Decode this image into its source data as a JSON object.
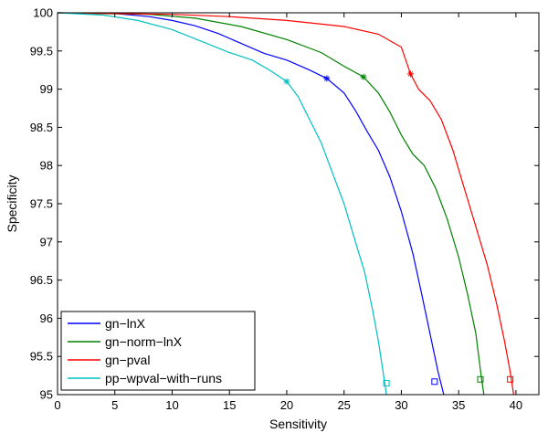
{
  "chart_data": {
    "type": "line",
    "title": "",
    "xlabel": "Sensitivity",
    "ylabel": "Specificity",
    "xlim": [
      0,
      42
    ],
    "ylim": [
      95,
      100
    ],
    "xticks": [
      0,
      5,
      10,
      15,
      20,
      25,
      30,
      35,
      40
    ],
    "yticks": [
      95,
      95.5,
      96,
      96.5,
      97,
      97.5,
      98,
      98.5,
      99,
      99.5,
      100
    ],
    "xtick_labels": [
      "0",
      "5",
      "10",
      "15",
      "20",
      "25",
      "30",
      "35",
      "40"
    ],
    "ytick_labels": [
      "95",
      "95.5",
      "96",
      "96.5",
      "97",
      "97.5",
      "98",
      "98.5",
      "99",
      "99.5",
      "100"
    ],
    "grid": false,
    "legend_position": "bottom-left",
    "series": [
      {
        "name": "gn−lnX",
        "color": "#0000ff",
        "points": [
          [
            0,
            100
          ],
          [
            5,
            99.99
          ],
          [
            8,
            99.95
          ],
          [
            10,
            99.9
          ],
          [
            12,
            99.83
          ],
          [
            14,
            99.73
          ],
          [
            16,
            99.6
          ],
          [
            18,
            99.47
          ],
          [
            20,
            99.38
          ],
          [
            22,
            99.25
          ],
          [
            23.5,
            99.14
          ],
          [
            25,
            98.95
          ],
          [
            26,
            98.72
          ],
          [
            27,
            98.45
          ],
          [
            28,
            98.2
          ],
          [
            29,
            97.85
          ],
          [
            30,
            97.4
          ],
          [
            31,
            96.85
          ],
          [
            31.8,
            96.3
          ],
          [
            32.5,
            95.8
          ],
          [
            33.2,
            95.3
          ],
          [
            33.7,
            95
          ]
        ],
        "asterisk": [
          23.5,
          99.14
        ],
        "square": [
          32.9,
          95.17
        ]
      },
      {
        "name": "gn−norm−lnX",
        "color": "#008000",
        "points": [
          [
            0,
            100
          ],
          [
            8,
            99.98
          ],
          [
            12,
            99.93
          ],
          [
            16,
            99.82
          ],
          [
            20,
            99.65
          ],
          [
            23,
            99.48
          ],
          [
            25,
            99.3
          ],
          [
            26.7,
            99.16
          ],
          [
            28,
            98.95
          ],
          [
            29,
            98.7
          ],
          [
            30,
            98.4
          ],
          [
            31,
            98.15
          ],
          [
            32,
            98
          ],
          [
            33,
            97.7
          ],
          [
            34,
            97.3
          ],
          [
            35,
            96.8
          ],
          [
            35.8,
            96.3
          ],
          [
            36.5,
            95.8
          ],
          [
            37,
            95.2
          ],
          [
            37.2,
            95
          ]
        ],
        "asterisk": [
          26.7,
          99.16
        ],
        "square": [
          36.9,
          95.2
        ]
      },
      {
        "name": "gn−pval",
        "color": "#ff0000",
        "points": [
          [
            0,
            100
          ],
          [
            10,
            99.98
          ],
          [
            15,
            99.95
          ],
          [
            20,
            99.9
          ],
          [
            25,
            99.82
          ],
          [
            28,
            99.72
          ],
          [
            30,
            99.55
          ],
          [
            30.8,
            99.2
          ],
          [
            31.5,
            99
          ],
          [
            32.5,
            98.85
          ],
          [
            33.5,
            98.6
          ],
          [
            34.5,
            98.2
          ],
          [
            35.5,
            97.7
          ],
          [
            36.5,
            97.2
          ],
          [
            37.5,
            96.7
          ],
          [
            38.3,
            96.2
          ],
          [
            39,
            95.7
          ],
          [
            39.5,
            95.3
          ],
          [
            39.8,
            95
          ]
        ],
        "asterisk": [
          30.8,
          99.2
        ],
        "square": [
          39.5,
          95.2
        ]
      },
      {
        "name": "pp−wpval−with−runs",
        "color": "#00c0c0",
        "points": [
          [
            0,
            100
          ],
          [
            4,
            99.97
          ],
          [
            7,
            99.9
          ],
          [
            10,
            99.78
          ],
          [
            13,
            99.6
          ],
          [
            15,
            99.48
          ],
          [
            17,
            99.38
          ],
          [
            18.5,
            99.25
          ],
          [
            20,
            99.1
          ],
          [
            21,
            98.9
          ],
          [
            22,
            98.6
          ],
          [
            23,
            98.3
          ],
          [
            24,
            97.9
          ],
          [
            25,
            97.5
          ],
          [
            26,
            97
          ],
          [
            26.8,
            96.6
          ],
          [
            27.5,
            96.1
          ],
          [
            28,
            95.7
          ],
          [
            28.4,
            95.3
          ],
          [
            28.7,
            95
          ]
        ],
        "asterisk": [
          20,
          99.1
        ],
        "square": [
          28.7,
          95.15
        ]
      }
    ]
  }
}
